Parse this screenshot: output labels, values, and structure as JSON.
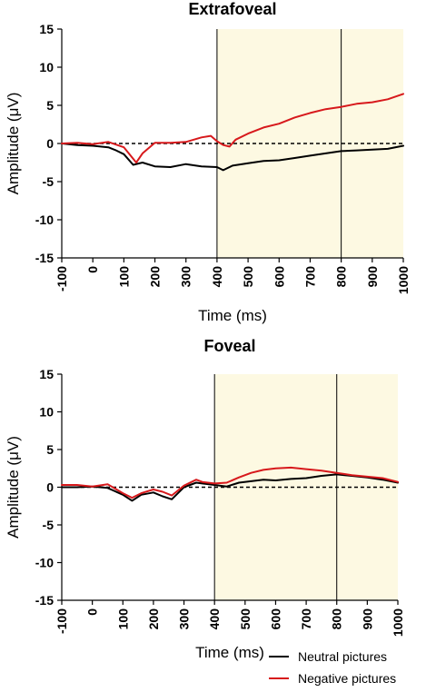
{
  "colors": {
    "neutral": "#000000",
    "negative": "#d7191c",
    "shade": "#fdf9e2"
  },
  "legend": {
    "position": "bottom-right",
    "items": [
      {
        "name": "Neutral pictures",
        "color": "#000000"
      },
      {
        "name": "Negative pictures",
        "color": "#d7191c"
      }
    ]
  },
  "chart_data": [
    {
      "type": "line",
      "title": "Extrafoveal",
      "xlabel": "Time (ms)",
      "ylabel": "Amplitude (μV)",
      "xlim": [
        -100,
        1000
      ],
      "ylim": [
        -15,
        15
      ],
      "xticks": [
        -100,
        0,
        100,
        200,
        300,
        400,
        500,
        600,
        700,
        800,
        900,
        1000
      ],
      "yticks": [
        15,
        10,
        5,
        0,
        -5,
        -10,
        -15
      ],
      "shaded_regions": [
        [
          400,
          800
        ],
        [
          800,
          1000
        ]
      ],
      "zero_line": "dashed",
      "series": [
        {
          "name": "Neutral pictures",
          "x": [
            -100,
            -50,
            0,
            50,
            75,
            100,
            130,
            160,
            200,
            250,
            300,
            350,
            400,
            420,
            450,
            500,
            550,
            600,
            650,
            700,
            750,
            800,
            850,
            900,
            950,
            1000
          ],
          "y": [
            0,
            -0.2,
            -0.3,
            -0.5,
            -0.9,
            -1.4,
            -2.8,
            -2.5,
            -3.0,
            -3.1,
            -2.7,
            -3.0,
            -3.1,
            -3.5,
            -2.9,
            -2.6,
            -2.3,
            -2.2,
            -1.9,
            -1.6,
            -1.3,
            -1.0,
            -0.9,
            -0.8,
            -0.7,
            -0.3
          ]
        },
        {
          "name": "Negative pictures",
          "x": [
            -100,
            -50,
            0,
            50,
            100,
            120,
            140,
            160,
            200,
            250,
            300,
            350,
            380,
            400,
            420,
            440,
            460,
            500,
            550,
            600,
            650,
            700,
            750,
            800,
            850,
            900,
            950,
            1000
          ],
          "y": [
            0,
            0.1,
            -0.1,
            0.2,
            -0.5,
            -1.5,
            -2.5,
            -1.3,
            0.1,
            0.1,
            0.2,
            0.8,
            1.0,
            0.3,
            -0.2,
            -0.4,
            0.5,
            1.3,
            2.1,
            2.6,
            3.4,
            4.0,
            4.5,
            4.8,
            5.2,
            5.4,
            5.8,
            6.5
          ]
        }
      ]
    },
    {
      "type": "line",
      "title": "Foveal",
      "xlabel": "Time (ms)",
      "ylabel": "Amplitude (μV)",
      "xlim": [
        -100,
        1000
      ],
      "ylim": [
        -15,
        15
      ],
      "xticks": [
        -100,
        0,
        100,
        200,
        300,
        400,
        500,
        600,
        700,
        800,
        900,
        1000
      ],
      "yticks": [
        15,
        10,
        5,
        0,
        -5,
        -10,
        -15
      ],
      "shaded_regions": [
        [
          400,
          800
        ],
        [
          800,
          1000
        ]
      ],
      "zero_line": "dashed",
      "series": [
        {
          "name": "Neutral pictures",
          "x": [
            -100,
            -50,
            0,
            50,
            100,
            130,
            160,
            200,
            230,
            260,
            300,
            340,
            360,
            400,
            440,
            480,
            520,
            560,
            600,
            650,
            700,
            750,
            800,
            850,
            900,
            950,
            1000
          ],
          "y": [
            0,
            0,
            0.1,
            -0.1,
            -1.0,
            -1.8,
            -1.0,
            -0.7,
            -1.2,
            -1.6,
            0,
            0.6,
            0.5,
            0.3,
            0.1,
            0.6,
            0.8,
            1.0,
            0.9,
            1.1,
            1.2,
            1.5,
            1.7,
            1.5,
            1.3,
            1.0,
            0.6
          ]
        },
        {
          "name": "Negative pictures",
          "x": [
            -100,
            -50,
            0,
            50,
            100,
            130,
            160,
            200,
            230,
            260,
            300,
            340,
            360,
            400,
            440,
            480,
            520,
            560,
            600,
            650,
            700,
            750,
            800,
            850,
            900,
            950,
            1000
          ],
          "y": [
            0.3,
            0.3,
            0.1,
            0.4,
            -0.8,
            -1.4,
            -0.8,
            -0.3,
            -0.6,
            -1.1,
            0.2,
            1.0,
            0.7,
            0.5,
            0.6,
            1.3,
            1.9,
            2.3,
            2.5,
            2.6,
            2.4,
            2.2,
            1.9,
            1.6,
            1.4,
            1.2,
            0.7
          ]
        }
      ]
    }
  ]
}
